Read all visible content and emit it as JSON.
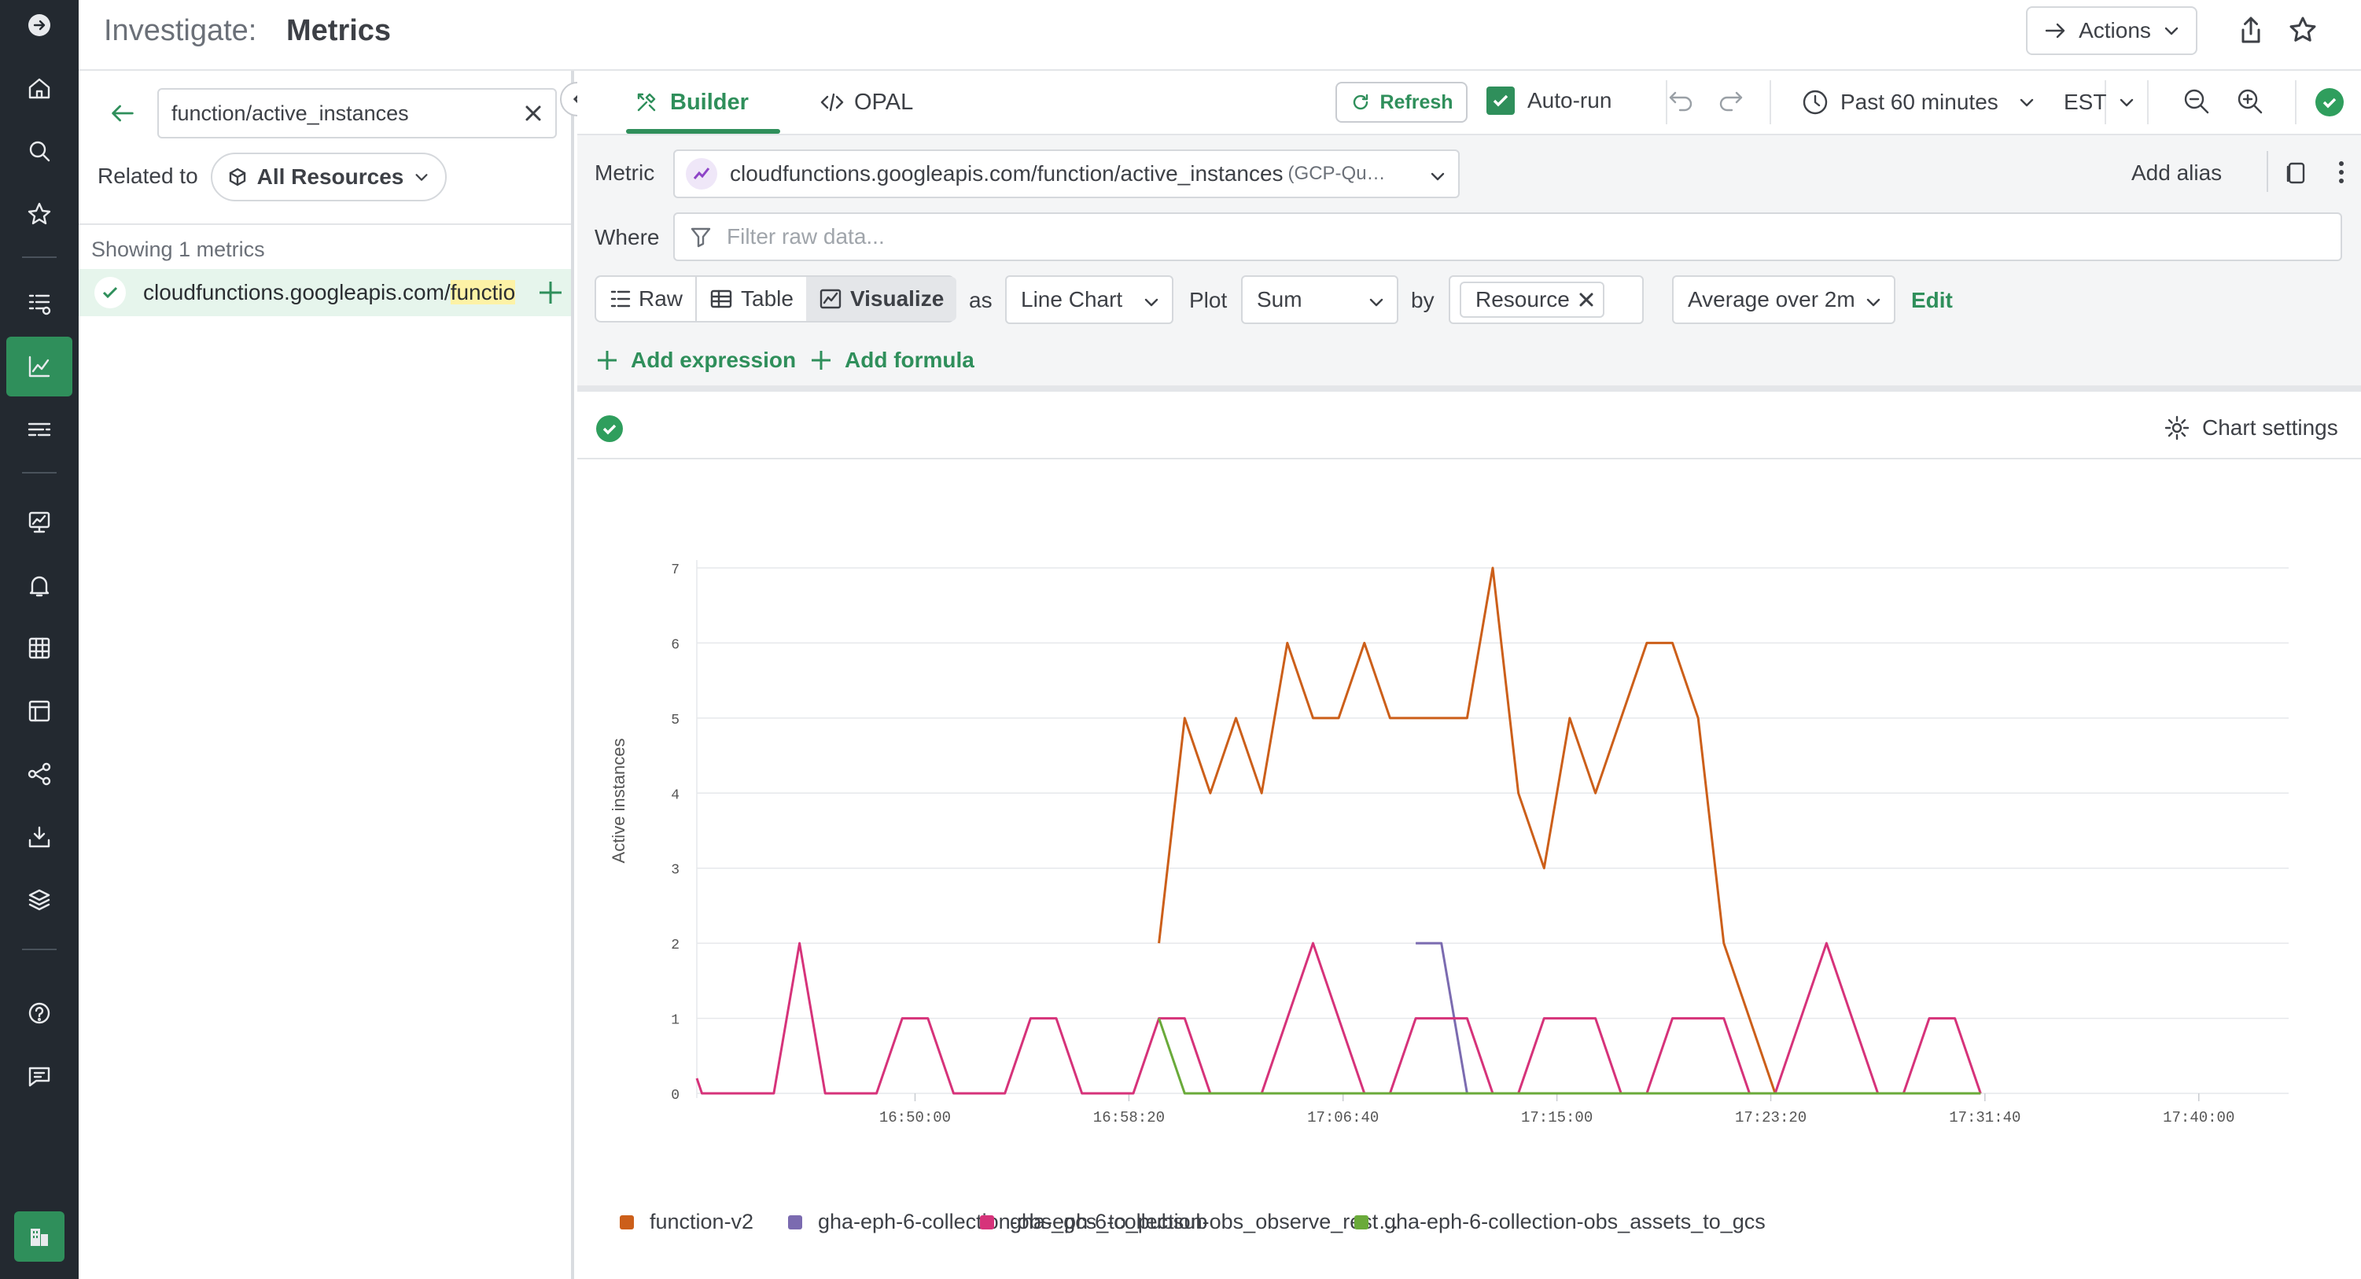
{
  "header": {
    "title_prefix": "Investigate:",
    "title": "Metrics",
    "actions_label": "Actions"
  },
  "sidebar": {
    "search_value": "function/active_instances",
    "related_label": "Related to",
    "resources_label": "All Resources",
    "showing_label": "Showing 1 metrics",
    "metric_item_pre": "cloudfunctions.googleapis.com/",
    "metric_item_hl": "functio"
  },
  "toolbar": {
    "tab_builder": "Builder",
    "tab_opal": "OPAL",
    "refresh_label": "Refresh",
    "autorun_label": "Auto-run",
    "time_range": "Past 60 minutes",
    "timezone": "EST"
  },
  "query": {
    "metric_label": "Metric",
    "metric_value": "cloudfunctions.googleapis.com/function/active_instances",
    "metric_source": "(GCP-Qu…",
    "add_alias": "Add alias",
    "where_label": "Where",
    "where_placeholder": "Filter raw data...",
    "mode_raw": "Raw",
    "mode_table": "Table",
    "mode_visualize": "Visualize",
    "as_label": "as",
    "chart_type": "Line Chart",
    "plot_label": "Plot",
    "plot_value": "Sum",
    "by_label": "by",
    "by_tag": "Resource",
    "agg_value": "Average over 2m",
    "edit_label": "Edit",
    "add_expression": "Add expression",
    "add_formula": "Add formula"
  },
  "chart_panel": {
    "settings_label": "Chart settings"
  },
  "colors": {
    "accent": "#2f8f5b",
    "function_v2": "#cc5f1a",
    "gcs_to_pubsub": "#7b6bb0",
    "observe_rest": "#d6337a",
    "assets_to_gcs": "#6aaa3a"
  },
  "chart_data": {
    "type": "line",
    "ylabel": "Active instances",
    "xlabel": "",
    "ylim": [
      0,
      7
    ],
    "yticks": [
      "0",
      "1",
      "2",
      "3",
      "4",
      "5",
      "6",
      "7"
    ],
    "xlim": [
      0,
      62
    ],
    "xticks": [
      {
        "t": 8.5,
        "label": "16:50:00"
      },
      {
        "t": 16.83,
        "label": "16:58:20"
      },
      {
        "t": 25.17,
        "label": "17:06:40"
      },
      {
        "t": 33.5,
        "label": "17:15:00"
      },
      {
        "t": 41.83,
        "label": "17:23:20"
      },
      {
        "t": 50.17,
        "label": "17:31:40"
      },
      {
        "t": 58.5,
        "label": "17:40:00"
      }
    ],
    "series": [
      {
        "name": "function-v2",
        "color": "#cc5f1a",
        "points": [
          [
            18,
            2
          ],
          [
            19,
            5
          ],
          [
            20,
            4
          ],
          [
            21,
            5
          ],
          [
            22,
            4
          ],
          [
            23,
            6
          ],
          [
            24,
            5
          ],
          [
            25,
            5
          ],
          [
            26,
            6
          ],
          [
            27,
            5
          ],
          [
            28,
            5
          ],
          [
            29,
            5
          ],
          [
            30,
            5
          ],
          [
            31,
            7
          ],
          [
            32,
            4
          ],
          [
            33,
            3
          ],
          [
            34,
            5
          ],
          [
            35,
            4
          ],
          [
            36,
            5
          ],
          [
            37,
            6
          ],
          [
            38,
            6
          ],
          [
            39,
            5
          ],
          [
            40,
            2
          ],
          [
            41,
            1
          ],
          [
            42,
            0
          ],
          [
            43,
            0
          ],
          [
            44,
            0
          ],
          [
            45,
            0
          ],
          [
            46,
            0
          ],
          [
            47,
            0
          ],
          [
            48,
            0
          ],
          [
            49,
            0
          ],
          [
            50,
            0
          ]
        ]
      },
      {
        "name": "gha-eph-6-collection-obs_gcs_to_pubsub",
        "color": "#7b6bb0",
        "points": [
          [
            28,
            2
          ],
          [
            29,
            2
          ],
          [
            30,
            0
          ],
          [
            31,
            0
          ],
          [
            32,
            0
          ],
          [
            33,
            0
          ],
          [
            34,
            0
          ],
          [
            35,
            0
          ],
          [
            36,
            0
          ],
          [
            37,
            0
          ],
          [
            38,
            0
          ],
          [
            39,
            0
          ],
          [
            40,
            0
          ],
          [
            41,
            0
          ],
          [
            42,
            0
          ],
          [
            43,
            0
          ],
          [
            44,
            0
          ],
          [
            45,
            0
          ],
          [
            46,
            0
          ],
          [
            47,
            0
          ],
          [
            48,
            0
          ]
        ]
      },
      {
        "name": "gha-eph-6-collection-obs_observe_rest…",
        "color": "#d6337a",
        "points": [
          [
            0,
            0.2
          ],
          [
            0.2,
            0
          ],
          [
            1,
            0
          ],
          [
            2,
            0
          ],
          [
            3,
            0
          ],
          [
            4,
            2
          ],
          [
            5,
            0
          ],
          [
            6,
            0
          ],
          [
            7,
            0
          ],
          [
            8,
            1
          ],
          [
            9,
            1
          ],
          [
            10,
            0
          ],
          [
            11,
            0
          ],
          [
            12,
            0
          ],
          [
            13,
            1
          ],
          [
            14,
            1
          ],
          [
            15,
            0
          ],
          [
            16,
            0
          ],
          [
            17,
            0
          ],
          [
            18,
            1
          ],
          [
            19,
            1
          ],
          [
            20,
            0
          ],
          [
            21,
            0
          ],
          [
            22,
            0
          ],
          [
            23,
            1
          ],
          [
            24,
            2
          ],
          [
            25,
            1
          ],
          [
            26,
            0
          ],
          [
            27,
            0
          ],
          [
            28,
            1
          ],
          [
            29,
            1
          ],
          [
            30,
            1
          ],
          [
            31,
            0
          ],
          [
            32,
            0
          ],
          [
            33,
            1
          ],
          [
            34,
            1
          ],
          [
            35,
            1
          ],
          [
            36,
            0
          ],
          [
            37,
            0
          ],
          [
            38,
            1
          ],
          [
            39,
            1
          ],
          [
            40,
            1
          ],
          [
            41,
            0
          ],
          [
            42,
            0
          ],
          [
            43,
            1
          ],
          [
            44,
            2
          ],
          [
            45,
            1
          ],
          [
            46,
            0
          ],
          [
            47,
            0
          ],
          [
            48,
            1
          ],
          [
            49,
            1
          ],
          [
            50,
            0
          ]
        ]
      },
      {
        "name": "gha-eph-6-collection-obs_assets_to_gcs",
        "color": "#6aaa3a",
        "points": [
          [
            18,
            1
          ],
          [
            19,
            0
          ],
          [
            20,
            0
          ],
          [
            21,
            0
          ],
          [
            22,
            0
          ],
          [
            23,
            0
          ],
          [
            24,
            0
          ],
          [
            25,
            0
          ],
          [
            26,
            0
          ],
          [
            27,
            0
          ],
          [
            28,
            0
          ],
          [
            29,
            0
          ],
          [
            30,
            0
          ],
          [
            31,
            0
          ],
          [
            32,
            0
          ],
          [
            33,
            0
          ],
          [
            34,
            0
          ],
          [
            35,
            0
          ],
          [
            36,
            0
          ],
          [
            37,
            0
          ],
          [
            38,
            0
          ],
          [
            39,
            0
          ],
          [
            40,
            0
          ],
          [
            41,
            0
          ],
          [
            42,
            0
          ],
          [
            43,
            0
          ],
          [
            44,
            0
          ],
          [
            45,
            0
          ],
          [
            46,
            0
          ],
          [
            47,
            0
          ],
          [
            48,
            0
          ],
          [
            49,
            0
          ],
          [
            50,
            0
          ]
        ]
      }
    ]
  }
}
